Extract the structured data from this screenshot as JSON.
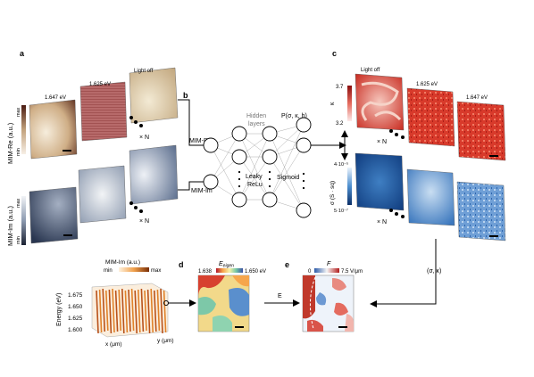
{
  "panels": {
    "a": "a",
    "b": "b",
    "c": "c",
    "d": "d",
    "e": "e"
  },
  "panel_a": {
    "re_axis_label": "MIM-Re (a.u.)",
    "im_axis_label": "MIM-Im (a.u.)",
    "max": "max",
    "min": "min",
    "tile_labels": [
      "1.647 eV",
      "1.625 eV",
      "Light off"
    ],
    "times_n": "× N"
  },
  "panel_b": {
    "input_re": "MIM-Re",
    "input_im": "MIM-Im",
    "hidden_layers": [
      "Hidden",
      "layers"
    ],
    "activation_1": [
      "Leaky",
      "ReLu"
    ],
    "activation_2": "Sigmoid",
    "output_label": "P(σ, κ, h)"
  },
  "panel_c": {
    "tile_labels": [
      "Light off",
      "1.625 eV",
      "1.647 eV"
    ],
    "kappa_symbol": "κ",
    "kappa_max": "3.7",
    "kappa_min": "3.2",
    "sigma_label": "σ (S · sq)",
    "sigma_max": "4·10⁻⁵",
    "sigma_min": "5·10⁻⁷",
    "times_n": "× N",
    "sigma_kappa_label": "(σ, κ)"
  },
  "panel_3d": {
    "title": "MIM-Im (a.u.)",
    "min": "min",
    "max": "max",
    "ylabel": "Energy (eV)",
    "yticks": [
      "1.675",
      "1.650",
      "1.625",
      "1.600"
    ],
    "xlabel": "x (μm)",
    "zlabel": "y (μm)"
  },
  "panel_d": {
    "title": "E",
    "title_sub": "eigen",
    "scale_min": "1.638",
    "scale_max": "1.650 eV"
  },
  "panel_e": {
    "title": "F",
    "scale_min": "0",
    "scale_max": "7.5 V/μm"
  },
  "arrow_E_label": "E",
  "colors": {
    "mim_re_map": "#d8c19a",
    "mim_im_map": "#3a4a6a",
    "kappa_map": "#d93a2b",
    "sigma_map": "#2a6fb5",
    "orange_3d": "#e0822a"
  }
}
